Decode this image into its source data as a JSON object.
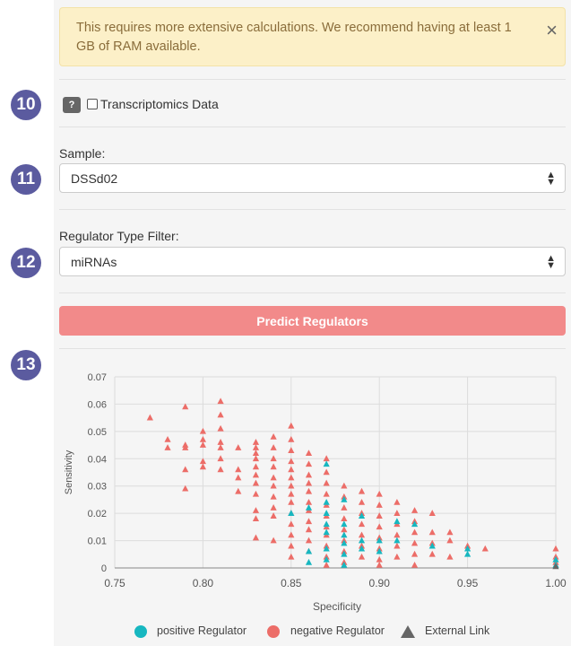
{
  "alert": {
    "text": "This requires more extensive calculations. We recommend having at least 1 GB of RAM available.",
    "close_glyph": "×"
  },
  "steps": [
    "10",
    "11",
    "12",
    "13"
  ],
  "transcriptomics": {
    "help": "?",
    "label": "Transcriptomics Data",
    "checked": false
  },
  "sample": {
    "label": "Sample:",
    "value": "DSSd02"
  },
  "regulator_filter": {
    "label": "Regulator Type Filter:",
    "value": "miRNAs"
  },
  "predict_button": "Predict Regulators",
  "colors": {
    "positive": "#17b7c0",
    "negative": "#ec6d68",
    "external": "#666666",
    "button": "#f28a8a",
    "badge": "#5b5b9f"
  },
  "chart_data": {
    "type": "scatter",
    "xlabel": "Specificity",
    "ylabel": "Sensitivity",
    "xlim": [
      0.75,
      1.0
    ],
    "ylim": [
      0,
      0.07
    ],
    "xticks": [
      "0.75",
      "0.80",
      "0.85",
      "0.90",
      "0.95",
      "1.00"
    ],
    "yticks": [
      "0",
      "0.01",
      "0.02",
      "0.03",
      "0.04",
      "0.05",
      "0.06",
      "0.07"
    ],
    "legend": [
      "positive Regulator",
      "negative Regulator",
      "External Link"
    ],
    "marker": "triangle",
    "series": [
      {
        "name": "negative Regulator",
        "points": [
          [
            0.77,
            0.055
          ],
          [
            0.78,
            0.047
          ],
          [
            0.78,
            0.044
          ],
          [
            0.79,
            0.059
          ],
          [
            0.79,
            0.045
          ],
          [
            0.79,
            0.044
          ],
          [
            0.79,
            0.036
          ],
          [
            0.79,
            0.029
          ],
          [
            0.8,
            0.05
          ],
          [
            0.8,
            0.047
          ],
          [
            0.8,
            0.045
          ],
          [
            0.8,
            0.039
          ],
          [
            0.8,
            0.037
          ],
          [
            0.81,
            0.061
          ],
          [
            0.81,
            0.056
          ],
          [
            0.81,
            0.051
          ],
          [
            0.81,
            0.046
          ],
          [
            0.81,
            0.044
          ],
          [
            0.81,
            0.04
          ],
          [
            0.81,
            0.036
          ],
          [
            0.82,
            0.044
          ],
          [
            0.82,
            0.036
          ],
          [
            0.82,
            0.033
          ],
          [
            0.82,
            0.028
          ],
          [
            0.83,
            0.046
          ],
          [
            0.83,
            0.044
          ],
          [
            0.83,
            0.042
          ],
          [
            0.83,
            0.04
          ],
          [
            0.83,
            0.037
          ],
          [
            0.83,
            0.034
          ],
          [
            0.83,
            0.031
          ],
          [
            0.83,
            0.027
          ],
          [
            0.83,
            0.021
          ],
          [
            0.83,
            0.018
          ],
          [
            0.83,
            0.011
          ],
          [
            0.84,
            0.048
          ],
          [
            0.84,
            0.044
          ],
          [
            0.84,
            0.04
          ],
          [
            0.84,
            0.037
          ],
          [
            0.84,
            0.033
          ],
          [
            0.84,
            0.03
          ],
          [
            0.84,
            0.026
          ],
          [
            0.84,
            0.022
          ],
          [
            0.84,
            0.019
          ],
          [
            0.84,
            0.01
          ],
          [
            0.85,
            0.052
          ],
          [
            0.85,
            0.047
          ],
          [
            0.85,
            0.043
          ],
          [
            0.85,
            0.039
          ],
          [
            0.85,
            0.036
          ],
          [
            0.85,
            0.033
          ],
          [
            0.85,
            0.03
          ],
          [
            0.85,
            0.027
          ],
          [
            0.85,
            0.024
          ],
          [
            0.85,
            0.02
          ],
          [
            0.85,
            0.016
          ],
          [
            0.85,
            0.012
          ],
          [
            0.85,
            0.008
          ],
          [
            0.85,
            0.004
          ],
          [
            0.86,
            0.042
          ],
          [
            0.86,
            0.038
          ],
          [
            0.86,
            0.034
          ],
          [
            0.86,
            0.031
          ],
          [
            0.86,
            0.028
          ],
          [
            0.86,
            0.024
          ],
          [
            0.86,
            0.021
          ],
          [
            0.86,
            0.017
          ],
          [
            0.86,
            0.014
          ],
          [
            0.86,
            0.01
          ],
          [
            0.86,
            0.006
          ],
          [
            0.87,
            0.04
          ],
          [
            0.87,
            0.035
          ],
          [
            0.87,
            0.031
          ],
          [
            0.87,
            0.027
          ],
          [
            0.87,
            0.023
          ],
          [
            0.87,
            0.019
          ],
          [
            0.87,
            0.015
          ],
          [
            0.87,
            0.012
          ],
          [
            0.87,
            0.008
          ],
          [
            0.87,
            0.004
          ],
          [
            0.87,
            0.001
          ],
          [
            0.88,
            0.03
          ],
          [
            0.88,
            0.026
          ],
          [
            0.88,
            0.022
          ],
          [
            0.88,
            0.018
          ],
          [
            0.88,
            0.014
          ],
          [
            0.88,
            0.01
          ],
          [
            0.88,
            0.006
          ],
          [
            0.88,
            0.002
          ],
          [
            0.89,
            0.028
          ],
          [
            0.89,
            0.024
          ],
          [
            0.89,
            0.02
          ],
          [
            0.89,
            0.016
          ],
          [
            0.89,
            0.012
          ],
          [
            0.89,
            0.008
          ],
          [
            0.89,
            0.004
          ],
          [
            0.9,
            0.027
          ],
          [
            0.9,
            0.023
          ],
          [
            0.9,
            0.019
          ],
          [
            0.9,
            0.015
          ],
          [
            0.9,
            0.011
          ],
          [
            0.9,
            0.007
          ],
          [
            0.9,
            0.003
          ],
          [
            0.9,
            0.001
          ],
          [
            0.91,
            0.024
          ],
          [
            0.91,
            0.02
          ],
          [
            0.91,
            0.016
          ],
          [
            0.91,
            0.012
          ],
          [
            0.91,
            0.008
          ],
          [
            0.91,
            0.004
          ],
          [
            0.92,
            0.021
          ],
          [
            0.92,
            0.017
          ],
          [
            0.92,
            0.013
          ],
          [
            0.92,
            0.009
          ],
          [
            0.92,
            0.005
          ],
          [
            0.92,
            0.001
          ],
          [
            0.93,
            0.02
          ],
          [
            0.93,
            0.013
          ],
          [
            0.93,
            0.009
          ],
          [
            0.93,
            0.005
          ],
          [
            0.94,
            0.013
          ],
          [
            0.94,
            0.01
          ],
          [
            0.94,
            0.004
          ],
          [
            0.95,
            0.008
          ],
          [
            0.96,
            0.007
          ],
          [
            1.0,
            0.007
          ],
          [
            1.0,
            0.004
          ],
          [
            1.0,
            0.002
          ]
        ]
      },
      {
        "name": "positive Regulator",
        "points": [
          [
            0.85,
            0.02
          ],
          [
            0.86,
            0.022
          ],
          [
            0.86,
            0.006
          ],
          [
            0.86,
            0.002
          ],
          [
            0.87,
            0.038
          ],
          [
            0.87,
            0.024
          ],
          [
            0.87,
            0.02
          ],
          [
            0.87,
            0.016
          ],
          [
            0.87,
            0.013
          ],
          [
            0.87,
            0.007
          ],
          [
            0.87,
            0.003
          ],
          [
            0.88,
            0.025
          ],
          [
            0.88,
            0.016
          ],
          [
            0.88,
            0.012
          ],
          [
            0.88,
            0.009
          ],
          [
            0.88,
            0.005
          ],
          [
            0.88,
            0.001
          ],
          [
            0.89,
            0.019
          ],
          [
            0.89,
            0.01
          ],
          [
            0.89,
            0.007
          ],
          [
            0.9,
            0.01
          ],
          [
            0.9,
            0.006
          ],
          [
            0.91,
            0.017
          ],
          [
            0.91,
            0.01
          ],
          [
            0.92,
            0.016
          ],
          [
            0.93,
            0.008
          ],
          [
            0.95,
            0.007
          ],
          [
            0.95,
            0.005
          ],
          [
            1.0,
            0.003
          ],
          [
            1.0,
            0.001
          ]
        ]
      },
      {
        "name": "External Link",
        "points": [
          [
            1.0,
            0.0005
          ]
        ]
      }
    ]
  },
  "legend_labels": {
    "positive": "positive Regulator",
    "negative": "negative Regulator",
    "external": "External Link"
  }
}
